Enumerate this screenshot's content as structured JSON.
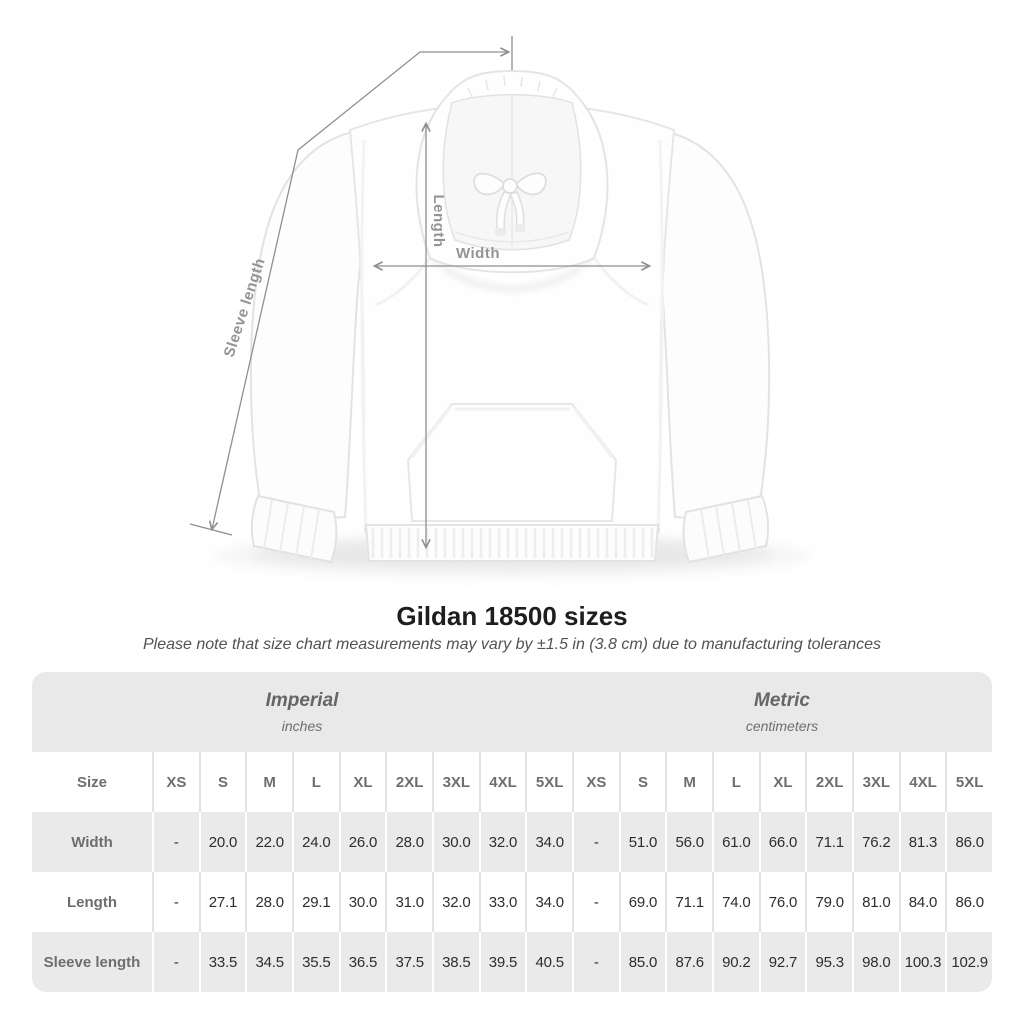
{
  "heading": {
    "title": "Gildan 18500 sizes",
    "subtitle": "Please note that size chart measurements may vary by ±1.5 in (3.8 cm) due to manufacturing tolerances"
  },
  "diagram": {
    "garment": "white pullover hoodie, front view",
    "measurement_labels": {
      "width": "Width",
      "length": "Length",
      "sleeve_length": "Sleeve length"
    }
  },
  "chart_data": {
    "type": "table",
    "title": "Gildan 18500 sizes",
    "corner_header": "Size",
    "unit_groups": [
      {
        "label": "Imperial",
        "unit": "inches"
      },
      {
        "label": "Metric",
        "unit": "centimeters"
      }
    ],
    "sizes": [
      "XS",
      "S",
      "M",
      "L",
      "XL",
      "2XL",
      "3XL",
      "4XL",
      "5XL"
    ],
    "rows": [
      {
        "label": "Width",
        "imperial": [
          "-",
          "20.0",
          "22.0",
          "24.0",
          "26.0",
          "28.0",
          "30.0",
          "32.0",
          "34.0"
        ],
        "metric": [
          "-",
          "51.0",
          "56.0",
          "61.0",
          "66.0",
          "71.1",
          "76.2",
          "81.3",
          "86.0"
        ]
      },
      {
        "label": "Length",
        "imperial": [
          "-",
          "27.1",
          "28.0",
          "29.1",
          "30.0",
          "31.0",
          "32.0",
          "33.0",
          "34.0"
        ],
        "metric": [
          "-",
          "69.0",
          "71.1",
          "74.0",
          "76.0",
          "79.0",
          "81.0",
          "84.0",
          "86.0"
        ]
      },
      {
        "label": "Sleeve length",
        "imperial": [
          "-",
          "33.5",
          "34.5",
          "35.5",
          "36.5",
          "37.5",
          "38.5",
          "39.5",
          "40.5"
        ],
        "metric": [
          "-",
          "85.0",
          "87.6",
          "90.2",
          "92.7",
          "95.3",
          "98.0",
          "100.3",
          "102.9"
        ]
      }
    ]
  },
  "colors": {
    "page_bg": "#ffffff",
    "band_bg": "#e9e9e9",
    "row_alt_bg": "#eaeaea",
    "header_text": "#6e6e6e",
    "value_text": "#2e2e2e",
    "title_text": "#1e1e1e",
    "subtitle_text": "#525252",
    "arrow": "#8f8f8f",
    "measure_label": "#949494"
  }
}
